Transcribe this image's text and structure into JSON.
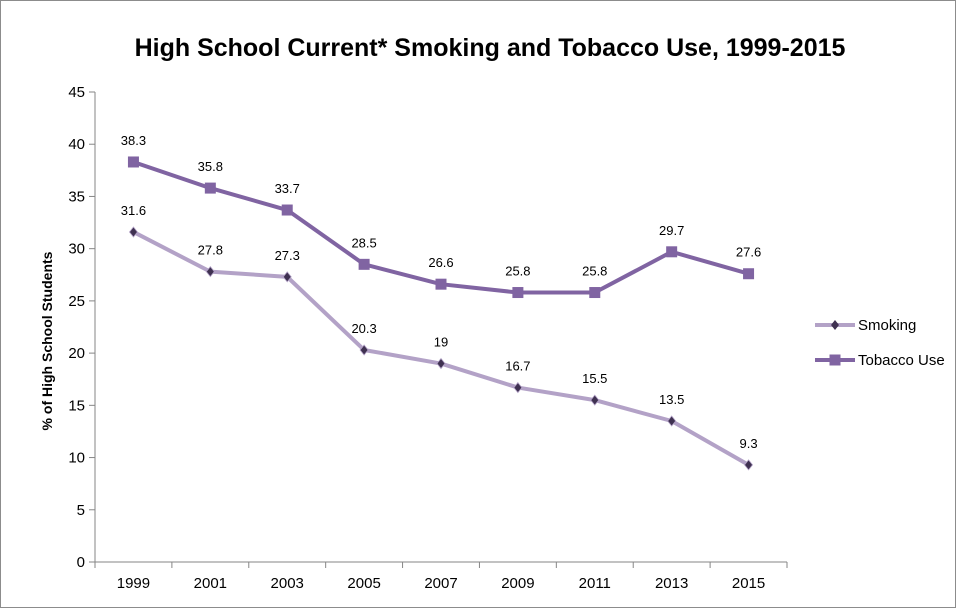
{
  "chart_data": {
    "type": "line",
    "title": "High School Current* Smoking and Tobacco Use, 1999-2015",
    "xlabel": "",
    "ylabel": "% of High School Students",
    "categories": [
      "1999",
      "2001",
      "2003",
      "2005",
      "2007",
      "2009",
      "2011",
      "2013",
      "2015"
    ],
    "ylim": [
      0,
      45
    ],
    "yticks": [
      0,
      5,
      10,
      15,
      20,
      25,
      30,
      35,
      40,
      45
    ],
    "grid": false,
    "legend_position": "right",
    "series": [
      {
        "name": "Smoking",
        "values": [
          31.6,
          27.8,
          27.3,
          20.3,
          19,
          16.7,
          15.5,
          13.5,
          9.3
        ],
        "labels": [
          "31.6",
          "27.8",
          "27.3",
          "20.3",
          "19",
          "16.7",
          "15.5",
          "13.5",
          "9.3"
        ],
        "color": "#b3a2c7",
        "marker": "diamond",
        "marker_color": "#3f3151"
      },
      {
        "name": "Tobacco Use",
        "values": [
          38.3,
          35.8,
          33.7,
          28.5,
          26.6,
          25.8,
          25.8,
          29.7,
          27.6
        ],
        "labels": [
          "38.3",
          "35.8",
          "33.7",
          "28.5",
          "26.6",
          "25.8",
          "25.8",
          "29.7",
          "27.6"
        ],
        "color": "#8064a2",
        "marker": "square",
        "marker_color": "#8064a2"
      }
    ]
  }
}
